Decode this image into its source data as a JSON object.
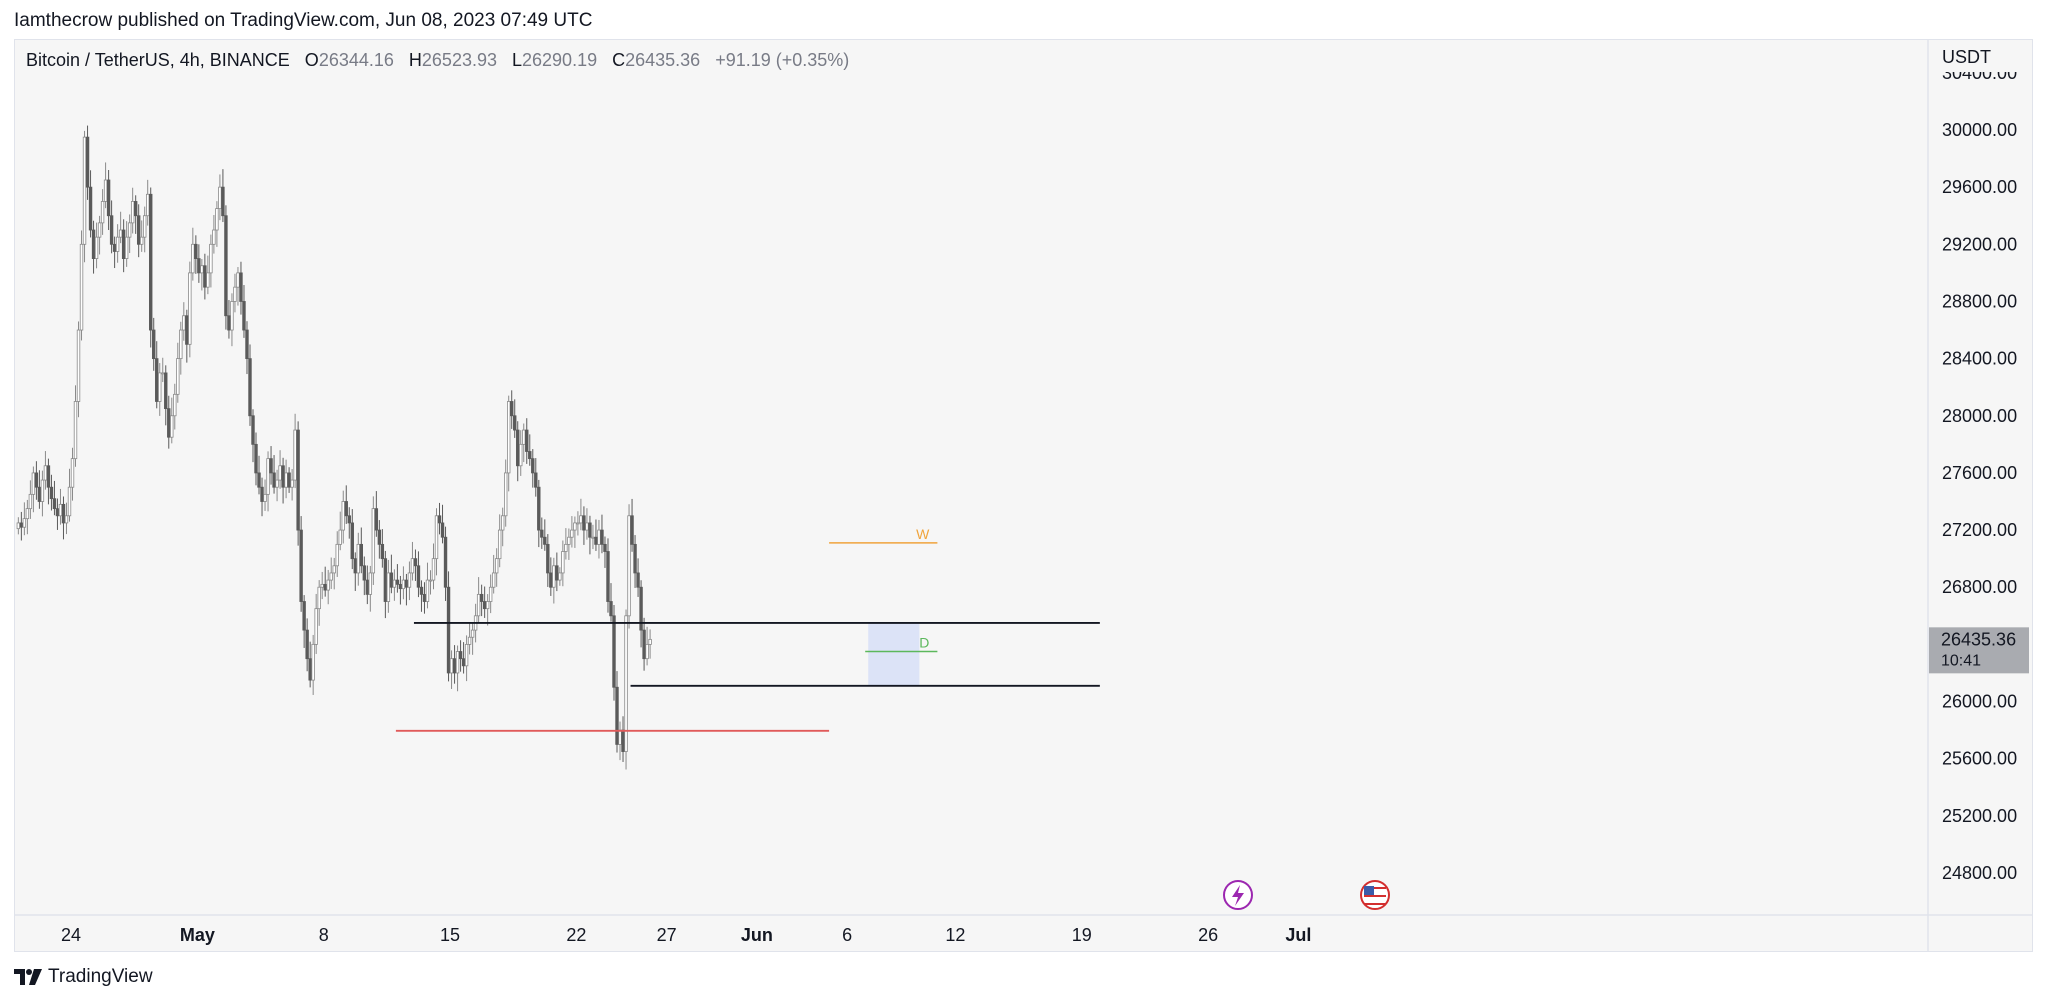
{
  "attribution": "Iamthecrow published on TradingView.com, Jun 08, 2023 07:49 UTC",
  "legend": {
    "symbol": "Bitcoin / TetherUS, 4h, BINANCE",
    "o_label": "O",
    "o_value": "26344.16",
    "h_label": "H",
    "h_value": "26523.93",
    "l_label": "L",
    "l_value": "26290.19",
    "c_label": "C",
    "c_value": "26435.36",
    "change": "+91.19 (+0.35%)"
  },
  "price_axis": {
    "currency": "USDT",
    "tick_labels": [
      "30400.00",
      "30000.00",
      "29600.00",
      "29200.00",
      "28800.00",
      "28400.00",
      "28000.00",
      "27600.00",
      "27200.00",
      "26800.00",
      "26000.00",
      "25600.00",
      "25200.00",
      "24800.00"
    ],
    "last_price_label": "26435.36",
    "countdown_label": "10:41"
  },
  "time_axis": {
    "tick_labels": [
      "24",
      "May",
      "8",
      "15",
      "22",
      "27",
      "Jun",
      "6",
      "12",
      "19",
      "26",
      "Jul"
    ]
  },
  "footer": {
    "brand": "TradingView"
  },
  "colors": {
    "background": "#f6f6f6",
    "candle": "#8a8a8a",
    "candle_dark": "#5a5a5a",
    "level_black": "#131722",
    "level_red": "#e05a5a",
    "weekly": "#f0a43c",
    "daily": "#5cb85c",
    "zone": "#dce3f7",
    "last_price_bg": "#a9abb0"
  },
  "chart_data": {
    "type": "candlestick",
    "title": "Bitcoin / TetherUS, 4h, BINANCE",
    "xlabel": "",
    "ylabel": "USDT",
    "ylim": [
      24550,
      30550
    ],
    "x_start": "2023-04-21",
    "last_close": 26435.36,
    "grid": false,
    "closes_4h": [
      27250,
      27220,
      27280,
      27350,
      27450,
      27600,
      27500,
      27400,
      27550,
      27650,
      27500,
      27420,
      27350,
      27300,
      27380,
      27250,
      27300,
      27500,
      27700,
      28100,
      28600,
      29200,
      29950,
      29600,
      29300,
      29100,
      29250,
      29350,
      29500,
      29650,
      29400,
      29200,
      29150,
      29250,
      29300,
      29100,
      29250,
      29350,
      29500,
      29400,
      29200,
      29250,
      29400,
      29550,
      28600,
      28400,
      28100,
      28300,
      28300,
      28050,
      27850,
      28000,
      28150,
      28400,
      28600,
      28700,
      28500,
      29000,
      29200,
      29100,
      29000,
      29050,
      28900,
      29000,
      29200,
      29300,
      29450,
      29600,
      29400,
      28700,
      28600,
      28800,
      28900,
      29000,
      28800,
      28600,
      28400,
      28000,
      27800,
      27600,
      27500,
      27400,
      27450,
      27700,
      27600,
      27500,
      27550,
      27650,
      27500,
      27600,
      27500,
      27550,
      27900,
      27200,
      26700,
      26500,
      26300,
      26150,
      26400,
      26650,
      26800,
      26820,
      26780,
      26850,
      26900,
      26950,
      27100,
      27200,
      27400,
      27300,
      27250,
      27000,
      26900,
      27100,
      26950,
      26850,
      26750,
      26900,
      27350,
      27200,
      27100,
      27000,
      26700,
      26900,
      26800,
      26850,
      26820,
      26790,
      26850,
      26800,
      26900,
      27000,
      26950,
      26800,
      26750,
      26700,
      26850,
      26850,
      27000,
      27300,
      27250,
      27150,
      26800,
      26200,
      26300,
      26200,
      26350,
      26300,
      26250,
      26400,
      26450,
      26500,
      26600,
      26750,
      26700,
      26650,
      26700,
      26800,
      26900,
      27000,
      27200,
      27300,
      27600,
      28100,
      28000,
      27900,
      27650,
      27800,
      27900,
      27750,
      27700,
      27600,
      27500,
      27200,
      27150,
      27100,
      26900,
      26800,
      26950,
      26850,
      26900,
      27050,
      27100,
      27150,
      27200,
      27250,
      27250,
      27300,
      27200,
      27250,
      27150,
      27150,
      27100,
      27200,
      27100,
      27050,
      26700,
      26600,
      26100,
      25700,
      25800,
      25650,
      26600,
      27300,
      27100,
      26900,
      26800,
      26500,
      26300,
      26400,
      26435
    ],
    "levels": [
      {
        "price": 26550,
        "from": "2023-05-13",
        "to": "2023-06-20"
      },
      {
        "price": 26110,
        "from": "2023-05-25",
        "to": "2023-06-20"
      },
      {
        "price": 25795,
        "from": "2023-05-12",
        "to": "2023-06-05"
      },
      {
        "price": 27110,
        "from": "2023-06-05",
        "to": "2023-06-11",
        "label": "W"
      },
      {
        "price": 26350,
        "from": "2023-06-07",
        "to": "2023-06-11",
        "label": "D"
      }
    ],
    "zone": {
      "from": "2023-06-07",
      "to": "2023-06-10",
      "top": 26550,
      "bottom": 26110
    }
  }
}
